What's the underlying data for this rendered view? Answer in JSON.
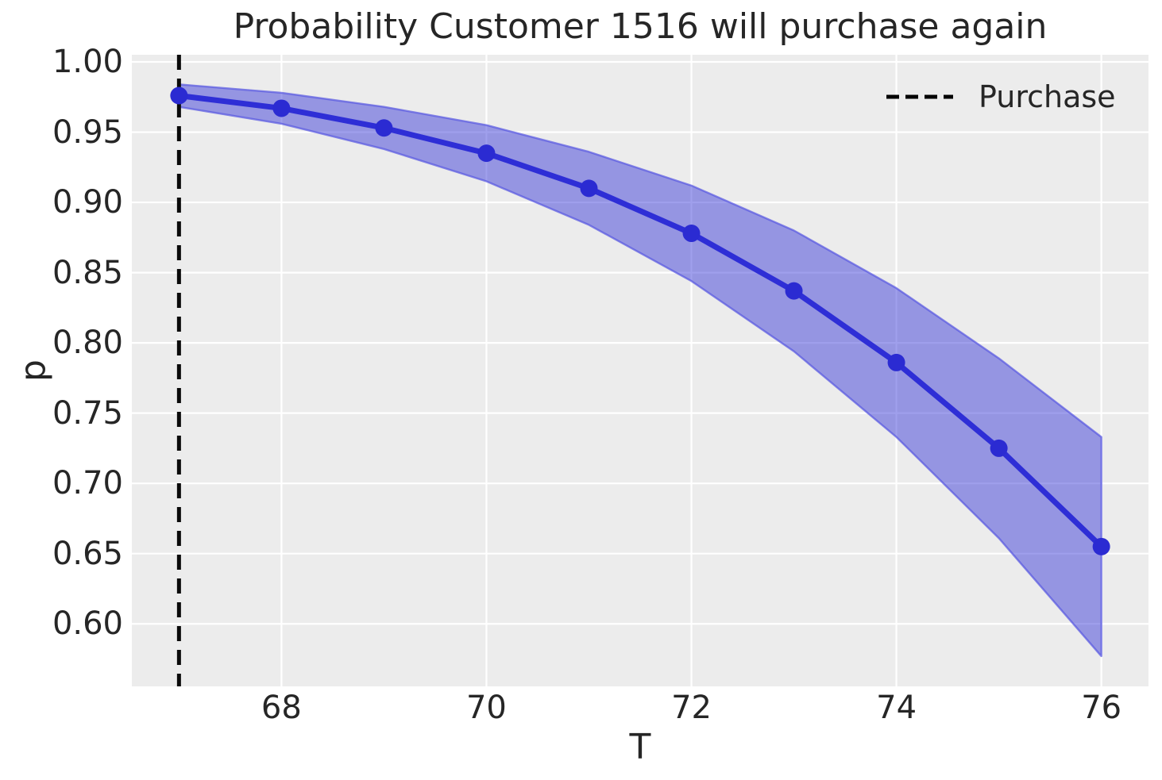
{
  "chart_data": {
    "type": "line",
    "title": "Probability Customer 1516 will purchase again",
    "xlabel": "T",
    "ylabel": "p",
    "x": [
      67,
      68,
      69,
      70,
      71,
      72,
      73,
      74,
      75,
      76
    ],
    "y": [
      0.976,
      0.967,
      0.953,
      0.935,
      0.91,
      0.878,
      0.837,
      0.786,
      0.725,
      0.655
    ],
    "band_upper": [
      0.984,
      0.978,
      0.968,
      0.955,
      0.936,
      0.912,
      0.88,
      0.839,
      0.789,
      0.733
    ],
    "band_lower": [
      0.968,
      0.956,
      0.938,
      0.915,
      0.884,
      0.844,
      0.794,
      0.733,
      0.661,
      0.577
    ],
    "vline_x": 67,
    "xticks": [
      68,
      70,
      72,
      74,
      76
    ],
    "yticks": [
      1.0,
      0.95,
      0.9,
      0.85,
      0.8,
      0.75,
      0.7,
      0.65,
      0.6
    ],
    "xlim": [
      66.54,
      76.46
    ],
    "ylim": [
      0.5555,
      1.0051
    ],
    "grid": true,
    "legend_position": "upper right",
    "legend": [
      {
        "label": "Purchase",
        "style": "dashed",
        "color": "#000000"
      }
    ],
    "colors": {
      "line": "#2e2ed6",
      "marker": "#2b2bd2",
      "band_fill": "rgba(55,55,215,0.48)",
      "band_edge": "rgba(85,85,225,0.70)",
      "vline": "#0a0a0a",
      "axes_background": "#ececec",
      "gridline": "#ffffff",
      "text": "#262626"
    }
  }
}
